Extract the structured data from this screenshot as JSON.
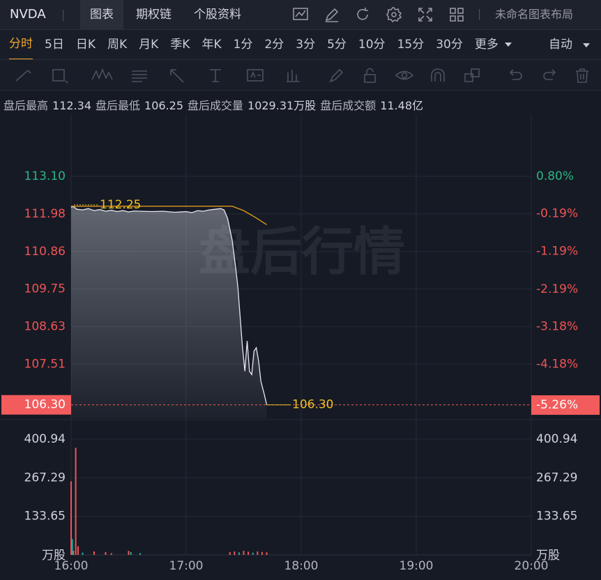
{
  "header": {
    "symbol": "NVDA",
    "tabs": [
      "图表",
      "期权链",
      "个股资料"
    ],
    "active_tab": 0,
    "layout_name": "未命名图表布局"
  },
  "periods": {
    "items": [
      "分时",
      "5日",
      "日K",
      "周K",
      "月K",
      "季K",
      "年K",
      "1分",
      "2分",
      "3分",
      "5分",
      "10分",
      "15分",
      "30分",
      "更多"
    ],
    "active": 0,
    "mode": "自动"
  },
  "info": [
    {
      "label": "盘后最高",
      "value": "112.34"
    },
    {
      "label": "盘后最低",
      "value": "106.25"
    },
    {
      "label": "盘后成交量",
      "value": "1029.31万股"
    },
    {
      "label": "盘后成交额",
      "value": "11.48亿"
    }
  ],
  "chart_data": {
    "type": "line",
    "watermark": "盘后行情",
    "xlim": [
      16,
      20
    ],
    "xticks": [
      {
        "value": 16,
        "label": "16:00"
      },
      {
        "value": 17,
        "label": "17:00"
      },
      {
        "value": 18,
        "label": "18:00"
      },
      {
        "value": 19,
        "label": "19:00"
      },
      {
        "value": 20,
        "label": "20:00"
      }
    ],
    "ylim": [
      105.9,
      114.82
    ],
    "yticks": [
      {
        "value": 113.1,
        "label": "113.10"
      },
      111.98,
      110.86,
      109.75,
      108.63,
      107.51
    ],
    "y2lim": [
      -5.61,
      2.33
    ],
    "y2ticks": [
      {
        "value": 0.8,
        "label": "0.80%"
      },
      {
        "value": -0.19,
        "label": "-0.19%"
      },
      {
        "value": -1.19,
        "label": "-1.19%"
      },
      {
        "value": -2.19,
        "label": "-2.19%"
      },
      {
        "value": -3.18,
        "label": "-3.18%"
      },
      {
        "value": -4.18,
        "label": "-4.18%"
      }
    ],
    "grid": true,
    "open_price": 112.25,
    "last_price": {
      "value": 106.3,
      "label": "106.30"
    },
    "last_change": {
      "value": -5.26,
      "label": "-5.26%"
    },
    "series": [
      {
        "color": "#e6e8ec",
        "x": [
          16.0,
          16.02,
          16.05,
          16.1,
          16.15,
          16.2,
          16.25,
          16.3,
          16.35,
          16.4,
          16.45,
          16.5,
          16.55,
          16.6,
          16.7,
          16.8,
          16.9,
          17.0,
          17.05,
          17.1,
          17.15,
          17.2,
          17.25,
          17.3,
          17.33,
          17.36,
          17.4,
          17.43,
          17.45,
          17.47,
          17.49,
          17.51,
          17.53,
          17.55,
          17.57,
          17.59,
          17.61,
          17.63,
          17.65,
          17.68,
          17.7
        ],
        "values": [
          112.18,
          112.2,
          112.12,
          112.1,
          112.14,
          112.08,
          112.11,
          112.06,
          112.09,
          112.05,
          112.08,
          112.04,
          112.07,
          112.06,
          112.05,
          112.06,
          112.03,
          112.05,
          112.02,
          112.08,
          112.06,
          112.1,
          112.12,
          112.14,
          112.1,
          111.85,
          111.2,
          110.4,
          109.8,
          108.9,
          108.0,
          107.3,
          108.2,
          107.3,
          107.2,
          107.9,
          108.0,
          107.6,
          107.0,
          106.6,
          106.3
        ]
      },
      {
        "color": "#e09a1e",
        "x": [
          16.0,
          17.4,
          17.5,
          17.6,
          17.7
        ],
        "values": [
          112.21,
          112.21,
          112.08,
          111.88,
          111.66
        ]
      }
    ],
    "volume": {
      "unit": "万股",
      "ylim": [
        0,
        461
      ],
      "yticks": [
        400.94,
        267.29,
        133.65
      ],
      "x": [
        16.0,
        16.01,
        16.02,
        16.04,
        16.06,
        16.1,
        16.2,
        16.3,
        16.35,
        16.5,
        16.52,
        16.6,
        17.38,
        17.42,
        17.46,
        17.5,
        17.54,
        17.58,
        17.62,
        17.66,
        17.7
      ],
      "values": [
        255,
        55,
        15,
        371,
        30,
        8,
        12,
        10,
        6,
        14,
        10,
        6,
        10,
        12,
        9,
        14,
        11,
        8,
        12,
        10,
        9
      ],
      "colors": [
        "#f05454",
        "#26a69a",
        "#f05454",
        "#f05454",
        "#f05454",
        "#26a69a",
        "#f05454",
        "#f05454",
        "#f05454",
        "#f05454",
        "#26a69a",
        "#26a69a",
        "#f05454",
        "#f05454",
        "#26a69a",
        "#f05454",
        "#f05454",
        "#26a69a",
        "#f05454",
        "#f05454",
        "#f05454"
      ]
    }
  }
}
